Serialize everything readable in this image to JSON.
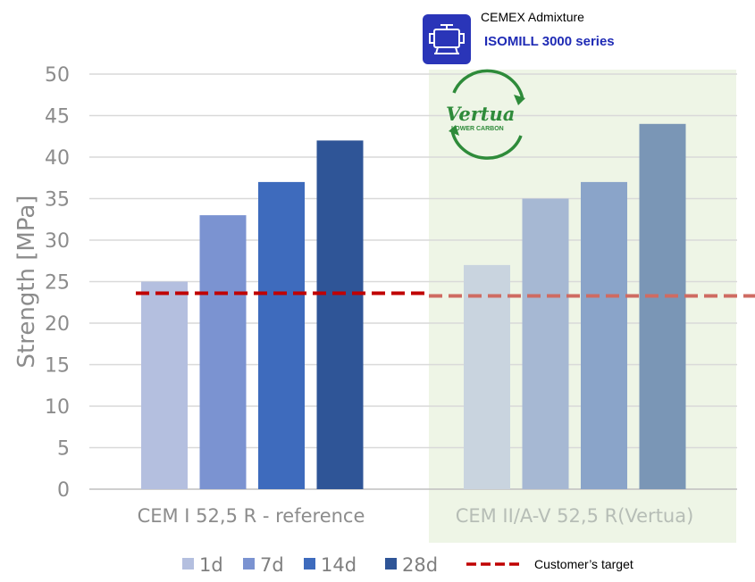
{
  "branding": {
    "line1": "CEMEX Admixture",
    "line2": "ISOMILL 3000 series",
    "icon": "mill-machine-icon",
    "icon_bg": "#2a35b8"
  },
  "vertua_logo": {
    "word": "Vertua",
    "sub": "LOWER CARBON",
    "color": "#2e8b3a"
  },
  "chart_data": {
    "type": "bar",
    "ylabel": "Strength [MPa]",
    "ylim": [
      0,
      50
    ],
    "yticks": [
      0,
      5,
      10,
      15,
      20,
      25,
      30,
      35,
      40,
      45,
      50
    ],
    "grid": true,
    "categories": [
      "CEM I 52,5 R - reference",
      "CEM II/A-V 52,5 R(Vertua)"
    ],
    "series": [
      {
        "name": "1d",
        "values": [
          25,
          27
        ],
        "colors": [
          "#b4bfdf",
          "#c9d4df"
        ]
      },
      {
        "name": "7d",
        "values": [
          33,
          35
        ],
        "colors": [
          "#7b93d1",
          "#a6b8d3"
        ]
      },
      {
        "name": "14d",
        "values": [
          37,
          37
        ],
        "colors": [
          "#3e6bbd",
          "#8aa4c9"
        ]
      },
      {
        "name": "28d",
        "values": [
          42,
          44
        ],
        "colors": [
          "#2f5597",
          "#7a96b6"
        ]
      }
    ],
    "target": {
      "name": "Customer’s target",
      "value": 23.6,
      "color": "#c00000"
    },
    "highlight_color": "#eef5e6",
    "legend_position": "bottom"
  }
}
